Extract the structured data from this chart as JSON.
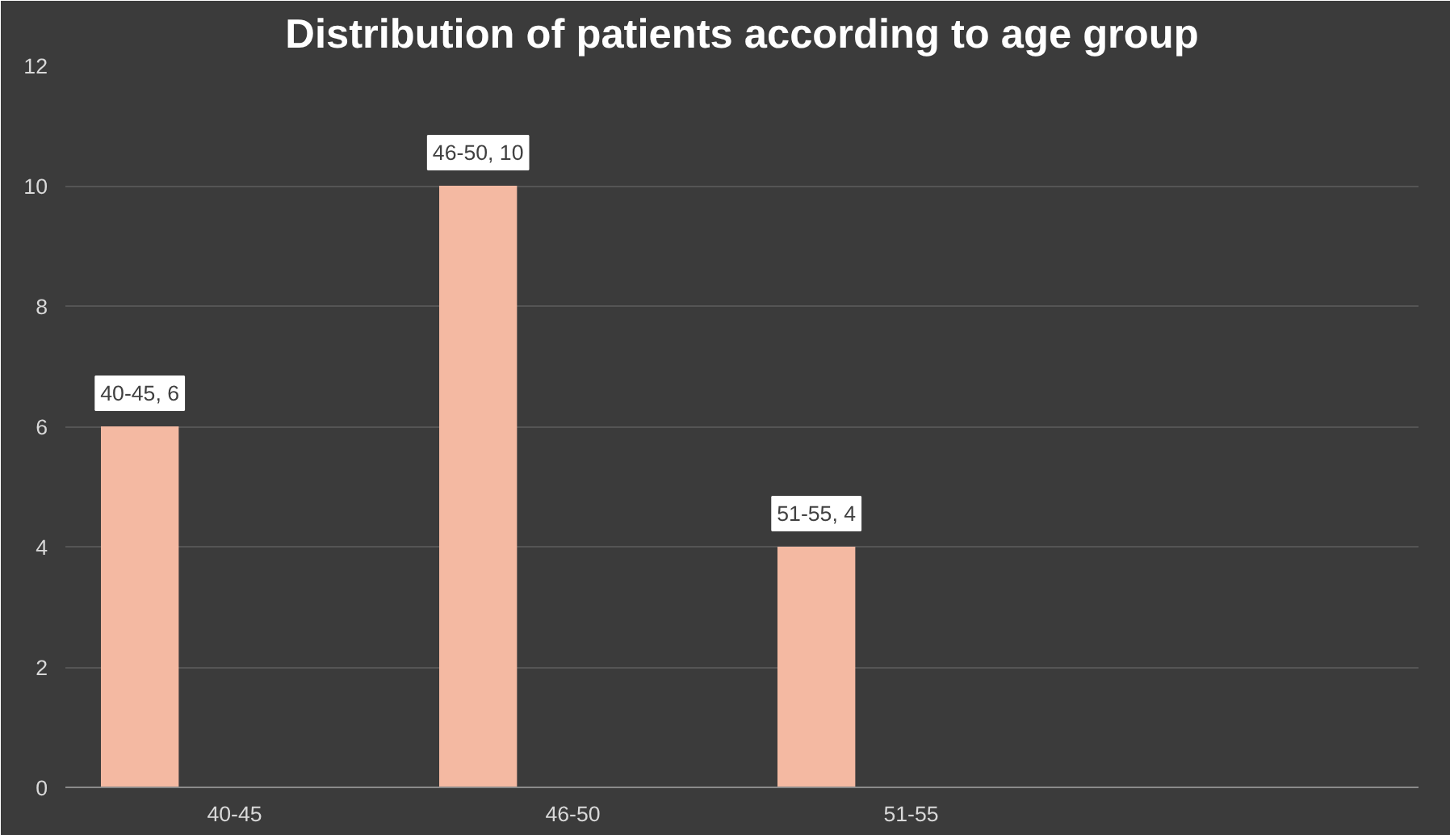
{
  "chart_data": {
    "type": "bar",
    "title": "Distribution of patients according to age group",
    "categories": [
      "40-45",
      "46-50",
      "51-55",
      null
    ],
    "values": [
      6,
      10,
      4,
      null
    ],
    "value_labels": [
      "40-45, 6",
      "46-50, 10",
      "51-55, 4",
      null
    ],
    "color": "#f4b9a2",
    "ylim": [
      0,
      12
    ],
    "yticks": [
      0,
      2,
      4,
      6,
      8,
      10,
      12
    ],
    "grid": "y"
  }
}
